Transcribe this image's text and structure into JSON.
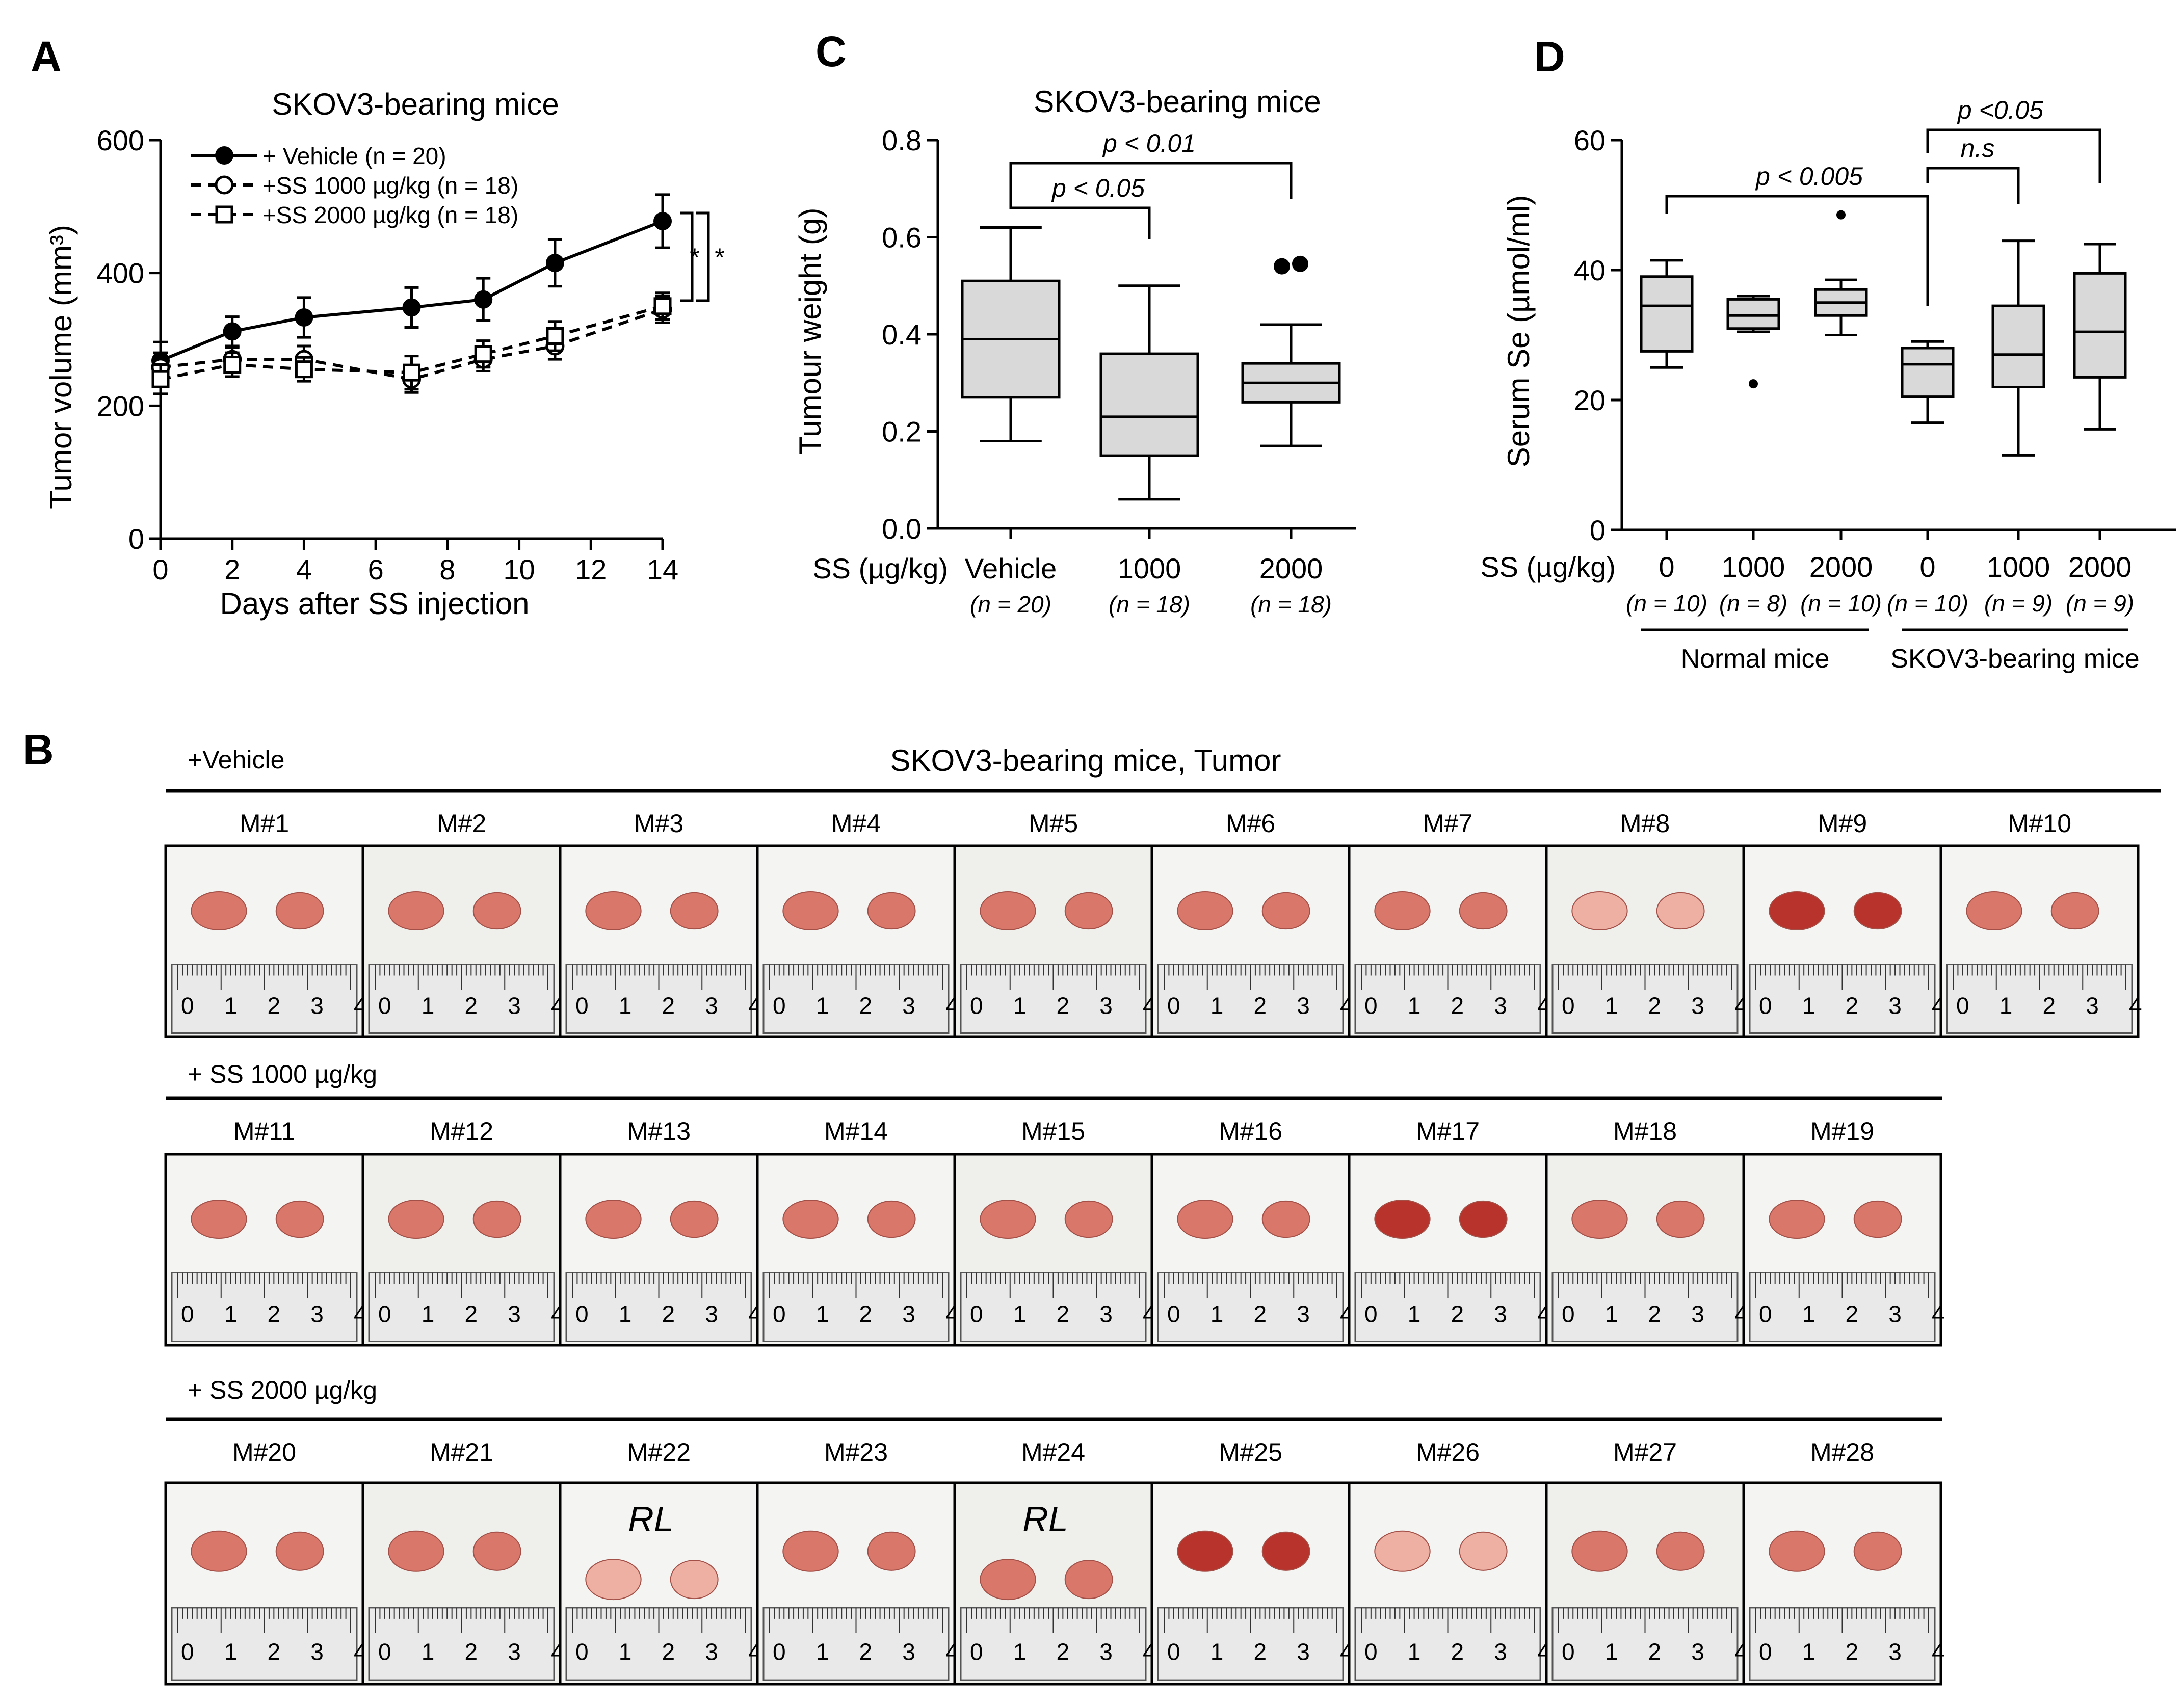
{
  "panel_letters": {
    "a": "A",
    "b": "B",
    "c": "C",
    "d": "D"
  },
  "chart_data": [
    {
      "id": "A",
      "type": "line",
      "title": "SKOV3-bearing mice",
      "xlabel": "Days after SS injection",
      "ylabel": "Tumor volume (mm³)",
      "x": [
        0,
        2,
        4,
        7,
        9,
        11,
        14
      ],
      "xticks": [
        "0",
        "2",
        "4",
        "6",
        "8",
        "10",
        "12",
        "14"
      ],
      "xlim": [
        0,
        14
      ],
      "yticks": [
        "0",
        "200",
        "400",
        "600"
      ],
      "ylim": [
        0,
        600
      ],
      "series": [
        {
          "name": "+ Vehicle (n = 20)",
          "marker": "filled-circle",
          "line": "solid",
          "values": [
            268,
            312,
            333,
            348,
            360,
            415,
            478
          ],
          "errors": [
            28,
            22,
            30,
            30,
            32,
            35,
            40
          ]
        },
        {
          "name": "+SS 1000 µg/kg (n = 18)",
          "marker": "open-circle",
          "line": "dashed",
          "values": [
            258,
            270,
            270,
            240,
            270,
            290,
            345
          ],
          "errors": [
            22,
            18,
            20,
            20,
            18,
            20,
            20
          ]
        },
        {
          "name": "+SS 2000 µg/kg (n = 18)",
          "marker": "open-square",
          "line": "dashed",
          "values": [
            240,
            262,
            255,
            250,
            278,
            305,
            350
          ],
          "errors": [
            22,
            18,
            18,
            25,
            20,
            22,
            20
          ]
        }
      ],
      "significance": [
        "*",
        "*"
      ]
    },
    {
      "id": "C",
      "type": "box",
      "title": "SKOV3-bearing mice",
      "ylabel": "Tumour weight (g)",
      "xaxis_prefix": "SS (µg/kg)",
      "yticks": [
        "0.0",
        "0.2",
        "0.4",
        "0.6",
        "0.8"
      ],
      "ylim": [
        0,
        0.8
      ],
      "categories": [
        "Vehicle",
        "1000",
        "2000"
      ],
      "n_labels": [
        "(n = 20)",
        "(n = 18)",
        "(n = 18)"
      ],
      "boxes": [
        {
          "min": 0.18,
          "q1": 0.27,
          "median": 0.39,
          "q3": 0.51,
          "max": 0.62,
          "outliers": []
        },
        {
          "min": 0.06,
          "q1": 0.15,
          "median": 0.23,
          "q3": 0.36,
          "max": 0.5,
          "outliers": []
        },
        {
          "min": 0.17,
          "q1": 0.26,
          "median": 0.3,
          "q3": 0.34,
          "max": 0.42,
          "outliers": [
            0.54,
            0.545
          ]
        }
      ],
      "comparisons": [
        {
          "from": 0,
          "to": 1,
          "label": "p < 0.05"
        },
        {
          "from": 0,
          "to": 2,
          "label": "p < 0.01"
        }
      ]
    },
    {
      "id": "D",
      "type": "box",
      "ylabel": "Serum Se (µmol/ml)",
      "xaxis_prefix": "SS (µg/kg)",
      "yticks": [
        "0",
        "20",
        "40",
        "60"
      ],
      "ylim": [
        0,
        60
      ],
      "categories": [
        "0",
        "1000",
        "2000",
        "0",
        "1000",
        "2000"
      ],
      "n_labels": [
        "(n = 10)",
        "(n = 8)",
        "(n = 10)",
        "(n = 10)",
        "(n = 9)",
        "(n = 9)"
      ],
      "groups": [
        {
          "label": "Normal mice",
          "from": 0,
          "to": 2
        },
        {
          "label": "SKOV3-bearing mice",
          "from": 3,
          "to": 5
        }
      ],
      "boxes": [
        {
          "min": 25,
          "q1": 27.5,
          "median": 34.5,
          "q3": 39,
          "max": 41.5,
          "outliers": []
        },
        {
          "min": 30.5,
          "q1": 31,
          "median": 33,
          "q3": 35.5,
          "max": 36,
          "outliers": [
            22.5
          ]
        },
        {
          "min": 30,
          "q1": 33,
          "median": 35,
          "q3": 37,
          "max": 38.5,
          "outliers": [
            48.5
          ]
        },
        {
          "min": 16.5,
          "q1": 20.5,
          "median": 25.5,
          "q3": 28,
          "max": 29,
          "outliers": []
        },
        {
          "min": 11.5,
          "q1": 22,
          "median": 27,
          "q3": 34.5,
          "max": 44.5,
          "outliers": []
        },
        {
          "min": 15.5,
          "q1": 23.5,
          "median": 30.5,
          "q3": 39.5,
          "max": 44,
          "outliers": []
        }
      ],
      "comparisons": [
        {
          "from": 0,
          "to": 3,
          "label": "p < 0.005"
        },
        {
          "from": 3,
          "to": 4,
          "label": "n.s"
        },
        {
          "from": 3,
          "to": 5,
          "label": "p <0.05"
        }
      ]
    }
  ],
  "panel_b": {
    "title": "SKOV3-bearing mice, Tumor",
    "rows": [
      {
        "label": "+Vehicle",
        "mice": [
          "M#1",
          "M#2",
          "M#3",
          "M#4",
          "M#5",
          "M#6",
          "M#7",
          "M#8",
          "M#9",
          "M#10"
        ]
      },
      {
        "label": "+ SS 1000 µg/kg",
        "mice": [
          "M#11",
          "M#12",
          "M#13",
          "M#14",
          "M#15",
          "M#16",
          "M#17",
          "M#18",
          "M#19"
        ]
      },
      {
        "label": "+ SS 2000 µg/kg",
        "mice": [
          "M#20",
          "M#21",
          "M#22",
          "M#23",
          "M#24",
          "M#25",
          "M#26",
          "M#27",
          "M#28"
        ]
      }
    ],
    "handwritten": {
      "M#22": "RL",
      "M#24": "RL"
    },
    "ruler_digits": [
      "0",
      "1",
      "2",
      "3",
      "4"
    ],
    "colors": {
      "tumor": "#d9776b",
      "tumor_dark": "#b8332c",
      "tumor_light": "#eeb0a3",
      "ruler": "#e9e9e9",
      "photo_bg": "#f4f4f2"
    }
  },
  "colors": {
    "box_fill": "#d9d9d9",
    "line": "#000000"
  }
}
